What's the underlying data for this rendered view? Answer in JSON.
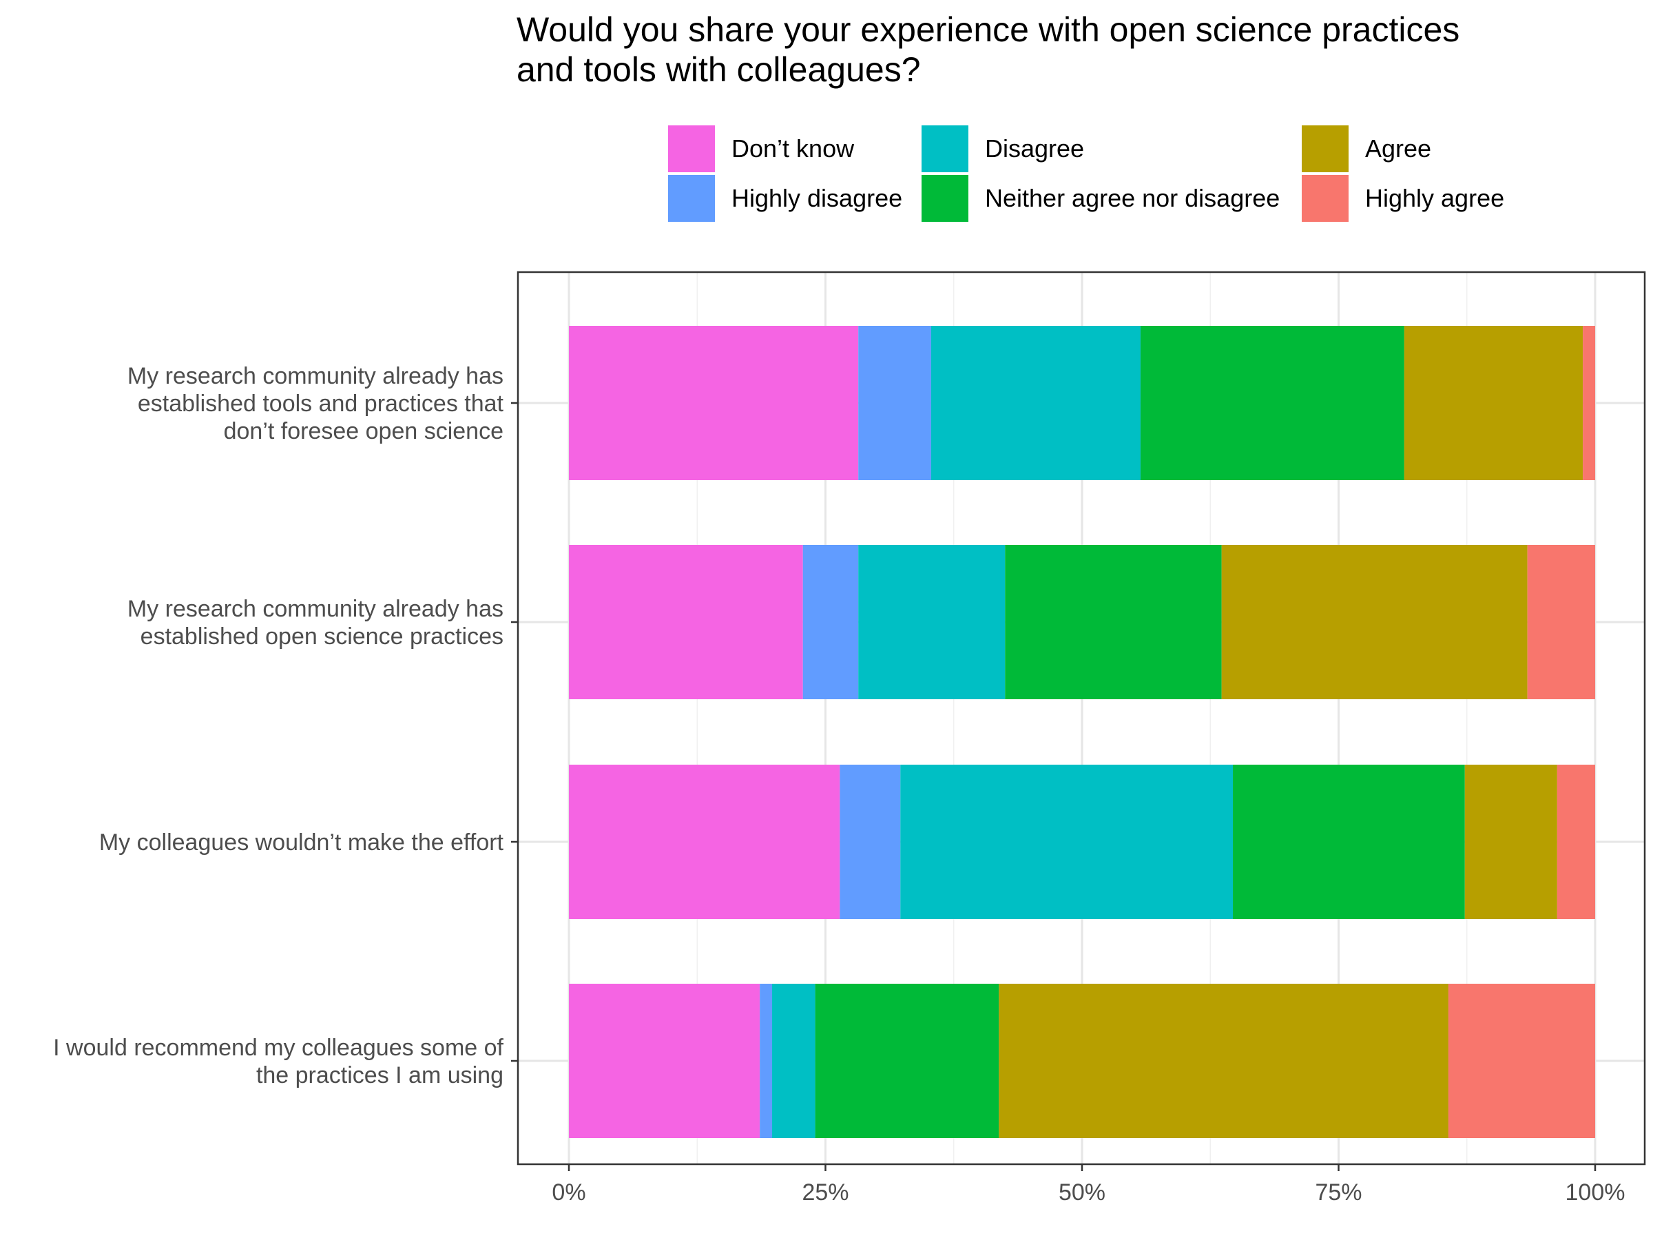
{
  "chart_data": {
    "type": "bar",
    "orientation": "horizontal",
    "stacked": "percent",
    "title_lines": [
      "Would you share your experience with open science practices",
      "and tools with colleagues?"
    ],
    "xlim": [
      0,
      100
    ],
    "x_ticks": [
      0,
      25,
      50,
      75,
      100
    ],
    "x_tick_labels": [
      "0%",
      "25%",
      "50%",
      "75%",
      "100%"
    ],
    "grid": true,
    "legend_position": "top",
    "categories": [
      [
        "My research community already has",
        "established tools and practices that",
        "don’t foresee open science"
      ],
      [
        "My research community already has",
        "established open science practices"
      ],
      [
        "My colleagues wouldn’t make the effort"
      ],
      [
        "I would recommend my colleagues some of",
        "the practices I am using"
      ]
    ],
    "legend": [
      {
        "name": "Don’t know",
        "color": "#F564E3"
      },
      {
        "name": "Disagree",
        "color": "#00BFC4"
      },
      {
        "name": "Agree",
        "color": "#B79F00"
      },
      {
        "name": "Highly disagree",
        "color": "#619CFF"
      },
      {
        "name": "Neither agree nor disagree",
        "color": "#00BA38"
      },
      {
        "name": "Highly agree",
        "color": "#F8766D"
      }
    ],
    "series": [
      {
        "name": "Don’t know",
        "color": "#F564E3",
        "values": [
          28.2,
          22.8,
          26.4,
          18.6
        ]
      },
      {
        "name": "Highly disagree",
        "color": "#619CFF",
        "values": [
          7.1,
          5.4,
          5.9,
          1.2
        ]
      },
      {
        "name": "Disagree",
        "color": "#00BFC4",
        "values": [
          20.4,
          14.3,
          32.4,
          4.2
        ]
      },
      {
        "name": "Neither agree nor disagree",
        "color": "#00BA38",
        "values": [
          25.7,
          21.1,
          22.6,
          17.9
        ]
      },
      {
        "name": "Agree",
        "color": "#B79F00",
        "values": [
          17.4,
          29.8,
          9.0,
          43.8
        ]
      },
      {
        "name": "Highly agree",
        "color": "#F8766D",
        "values": [
          1.2,
          6.6,
          3.7,
          14.3
        ]
      }
    ]
  }
}
